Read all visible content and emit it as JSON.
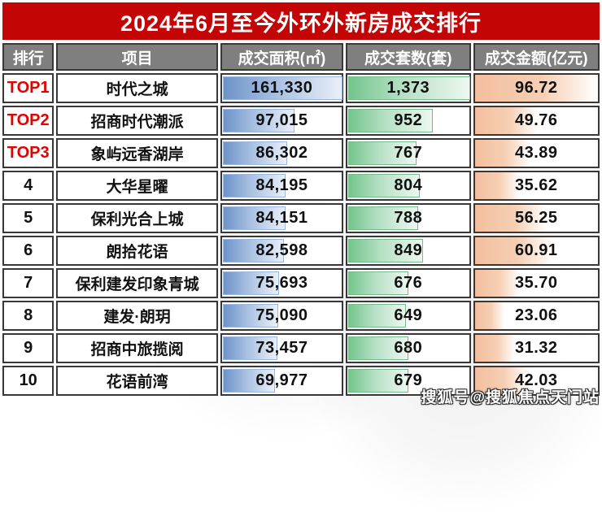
{
  "title": "2024年6月至今外环外新房成交排行",
  "columns": [
    "排行",
    "项目",
    "成交面积(㎡)",
    "成交套数(套)",
    "成交金额(亿元)"
  ],
  "watermark": "搜狐号@搜狐焦点天门站",
  "colors": {
    "title_bg": "#c40505",
    "header_bg": "#7f7f7f",
    "top_rank_red": "#e60000",
    "bar_blue": "#6d93c8",
    "bar_green": "#74c58d",
    "bar_peach": "#f3bf9f",
    "border": "#383838"
  },
  "table": {
    "max": {
      "area": 161330,
      "units": 1373,
      "amount": 96.72
    },
    "rows": [
      {
        "rank": "TOP1",
        "is_top": true,
        "project": "时代之城",
        "area": "161,330",
        "area_value": 161330,
        "units": "1,373",
        "units_value": 1373,
        "amount": "96.72",
        "amount_value": 96.72
      },
      {
        "rank": "TOP2",
        "is_top": true,
        "project": "招商时代潮派",
        "area": "97,015",
        "area_value": 97015,
        "units": "952",
        "units_value": 952,
        "amount": "49.76",
        "amount_value": 49.76
      },
      {
        "rank": "TOP3",
        "is_top": true,
        "project": "象屿远香湖岸",
        "area": "86,302",
        "area_value": 86302,
        "units": "767",
        "units_value": 767,
        "amount": "43.89",
        "amount_value": 43.89
      },
      {
        "rank": "4",
        "is_top": false,
        "project": "大华星曜",
        "area": "84,195",
        "area_value": 84195,
        "units": "804",
        "units_value": 804,
        "amount": "35.62",
        "amount_value": 35.62
      },
      {
        "rank": "5",
        "is_top": false,
        "project": "保利光合上城",
        "area": "84,151",
        "area_value": 84151,
        "units": "788",
        "units_value": 788,
        "amount": "56.25",
        "amount_value": 56.25
      },
      {
        "rank": "6",
        "is_top": false,
        "project": "朗拾花语",
        "area": "82,598",
        "area_value": 82598,
        "units": "849",
        "units_value": 849,
        "amount": "60.91",
        "amount_value": 60.91
      },
      {
        "rank": "7",
        "is_top": false,
        "project": "保利建发印象青城",
        "area": "75,693",
        "area_value": 75693,
        "units": "676",
        "units_value": 676,
        "amount": "35.70",
        "amount_value": 35.7
      },
      {
        "rank": "8",
        "is_top": false,
        "project": "建发·朗玥",
        "area": "75,090",
        "area_value": 75090,
        "units": "649",
        "units_value": 649,
        "amount": "23.06",
        "amount_value": 23.06
      },
      {
        "rank": "9",
        "is_top": false,
        "project": "招商中旅揽阅",
        "area": "73,457",
        "area_value": 73457,
        "units": "680",
        "units_value": 680,
        "amount": "31.32",
        "amount_value": 31.32
      },
      {
        "rank": "10",
        "is_top": false,
        "project": "花语前湾",
        "area": "69,977",
        "area_value": 69977,
        "units": "679",
        "units_value": 679,
        "amount": "42.03",
        "amount_value": 42.03
      }
    ]
  },
  "chart_data": {
    "type": "table",
    "title": "2024年6月至今外环外新房成交排行",
    "columns": [
      "排行",
      "项目",
      "成交面积(㎡)",
      "成交套数(套)",
      "成交金额(亿元)"
    ],
    "categories": [
      "时代之城",
      "招商时代潮派",
      "象屿远香湖岸",
      "大华星曜",
      "保利光合上城",
      "朗拾花语",
      "保利建发印象青城",
      "建发·朗玥",
      "招商中旅揽阅",
      "花语前湾"
    ],
    "series": [
      {
        "name": "成交面积(㎡)",
        "values": [
          161330,
          97015,
          86302,
          84195,
          84151,
          82598,
          75693,
          75090,
          73457,
          69977
        ]
      },
      {
        "name": "成交套数(套)",
        "values": [
          1373,
          952,
          767,
          804,
          788,
          849,
          676,
          649,
          680,
          679
        ]
      },
      {
        "name": "成交金额(亿元)",
        "values": [
          96.72,
          49.76,
          43.89,
          35.62,
          56.25,
          60.91,
          35.7,
          23.06,
          31.32,
          42.03
        ]
      }
    ],
    "ranks": [
      "TOP1",
      "TOP2",
      "TOP3",
      "4",
      "5",
      "6",
      "7",
      "8",
      "9",
      "10"
    ]
  }
}
